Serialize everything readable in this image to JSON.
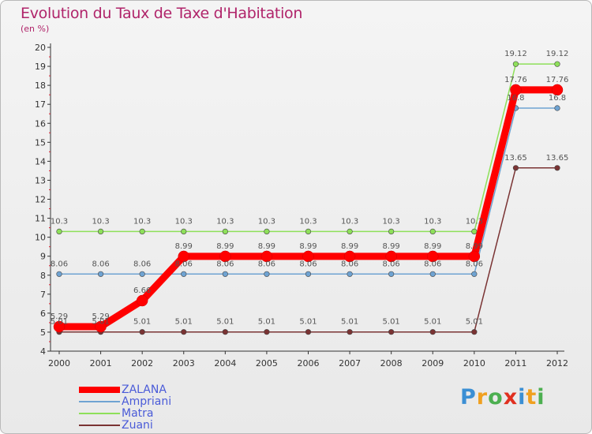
{
  "chart_data": {
    "type": "line",
    "title": "Evolution du Taux de Taxe d'Habitation",
    "subtitle": "(en %)",
    "categories": [
      "2000",
      "2001",
      "2002",
      "2003",
      "2004",
      "2005",
      "2006",
      "2007",
      "2008",
      "2009",
      "2010",
      "2011",
      "2012"
    ],
    "ylim": [
      4,
      20
    ],
    "yticks": [
      "4",
      "5",
      "6",
      "7",
      "8",
      "9",
      "10",
      "11",
      "12",
      "13",
      "14",
      "15",
      "16",
      "17",
      "18",
      "19",
      "20"
    ],
    "grid": false,
    "legend_position": "bottom-left",
    "series": [
      {
        "name": "ZALANA",
        "color": "#ff0000",
        "values": [
          5.29,
          5.29,
          6.66,
          8.99,
          8.99,
          8.99,
          8.99,
          8.99,
          8.99,
          8.99,
          8.99,
          17.76,
          17.76
        ],
        "labels": [
          "5.29",
          "5.29",
          "6.66",
          "8.99",
          "8.99",
          "8.99",
          "8.99",
          "8.99",
          "8.99",
          "8.99",
          "8.99",
          "17.76",
          "17.76"
        ]
      },
      {
        "name": "Ampriani",
        "color": "#6fa3d2",
        "values": [
          8.06,
          8.06,
          8.06,
          8.06,
          8.06,
          8.06,
          8.06,
          8.06,
          8.06,
          8.06,
          8.06,
          16.8,
          16.8
        ],
        "labels": [
          "8.06",
          "8.06",
          "8.06",
          "8.06",
          "8.06",
          "8.06",
          "8.06",
          "8.06",
          "8.06",
          "8.06",
          "8.06",
          "16.8",
          "16.8"
        ]
      },
      {
        "name": "Matra",
        "color": "#8ee05a",
        "values": [
          10.3,
          10.3,
          10.3,
          10.3,
          10.3,
          10.3,
          10.3,
          10.3,
          10.3,
          10.3,
          10.3,
          19.12,
          19.12
        ],
        "labels": [
          "10.3",
          "10.3",
          "10.3",
          "10.3",
          "10.3",
          "10.3",
          "10.3",
          "10.3",
          "10.3",
          "10.3",
          "10.3",
          "19.12",
          "19.12"
        ]
      },
      {
        "name": "Zuani",
        "color": "#7a3333",
        "values": [
          5.01,
          5.01,
          5.01,
          5.01,
          5.01,
          5.01,
          5.01,
          5.01,
          5.01,
          5.01,
          5.01,
          13.65,
          13.65
        ],
        "labels": [
          "5.01",
          "5.01",
          "5.01",
          "5.01",
          "5.01",
          "5.01",
          "5.01",
          "5.01",
          "5.01",
          "5.01",
          "5.01",
          "13.65",
          "13.65"
        ]
      }
    ]
  },
  "logo": {
    "letters": [
      "P",
      "r",
      "o",
      "x",
      "i",
      "t",
      "i"
    ],
    "colors": [
      "#3b8fd4",
      "#f0a020",
      "#4caf50",
      "#e03020",
      "#3b8fd4",
      "#f0a020",
      "#4caf50"
    ]
  }
}
